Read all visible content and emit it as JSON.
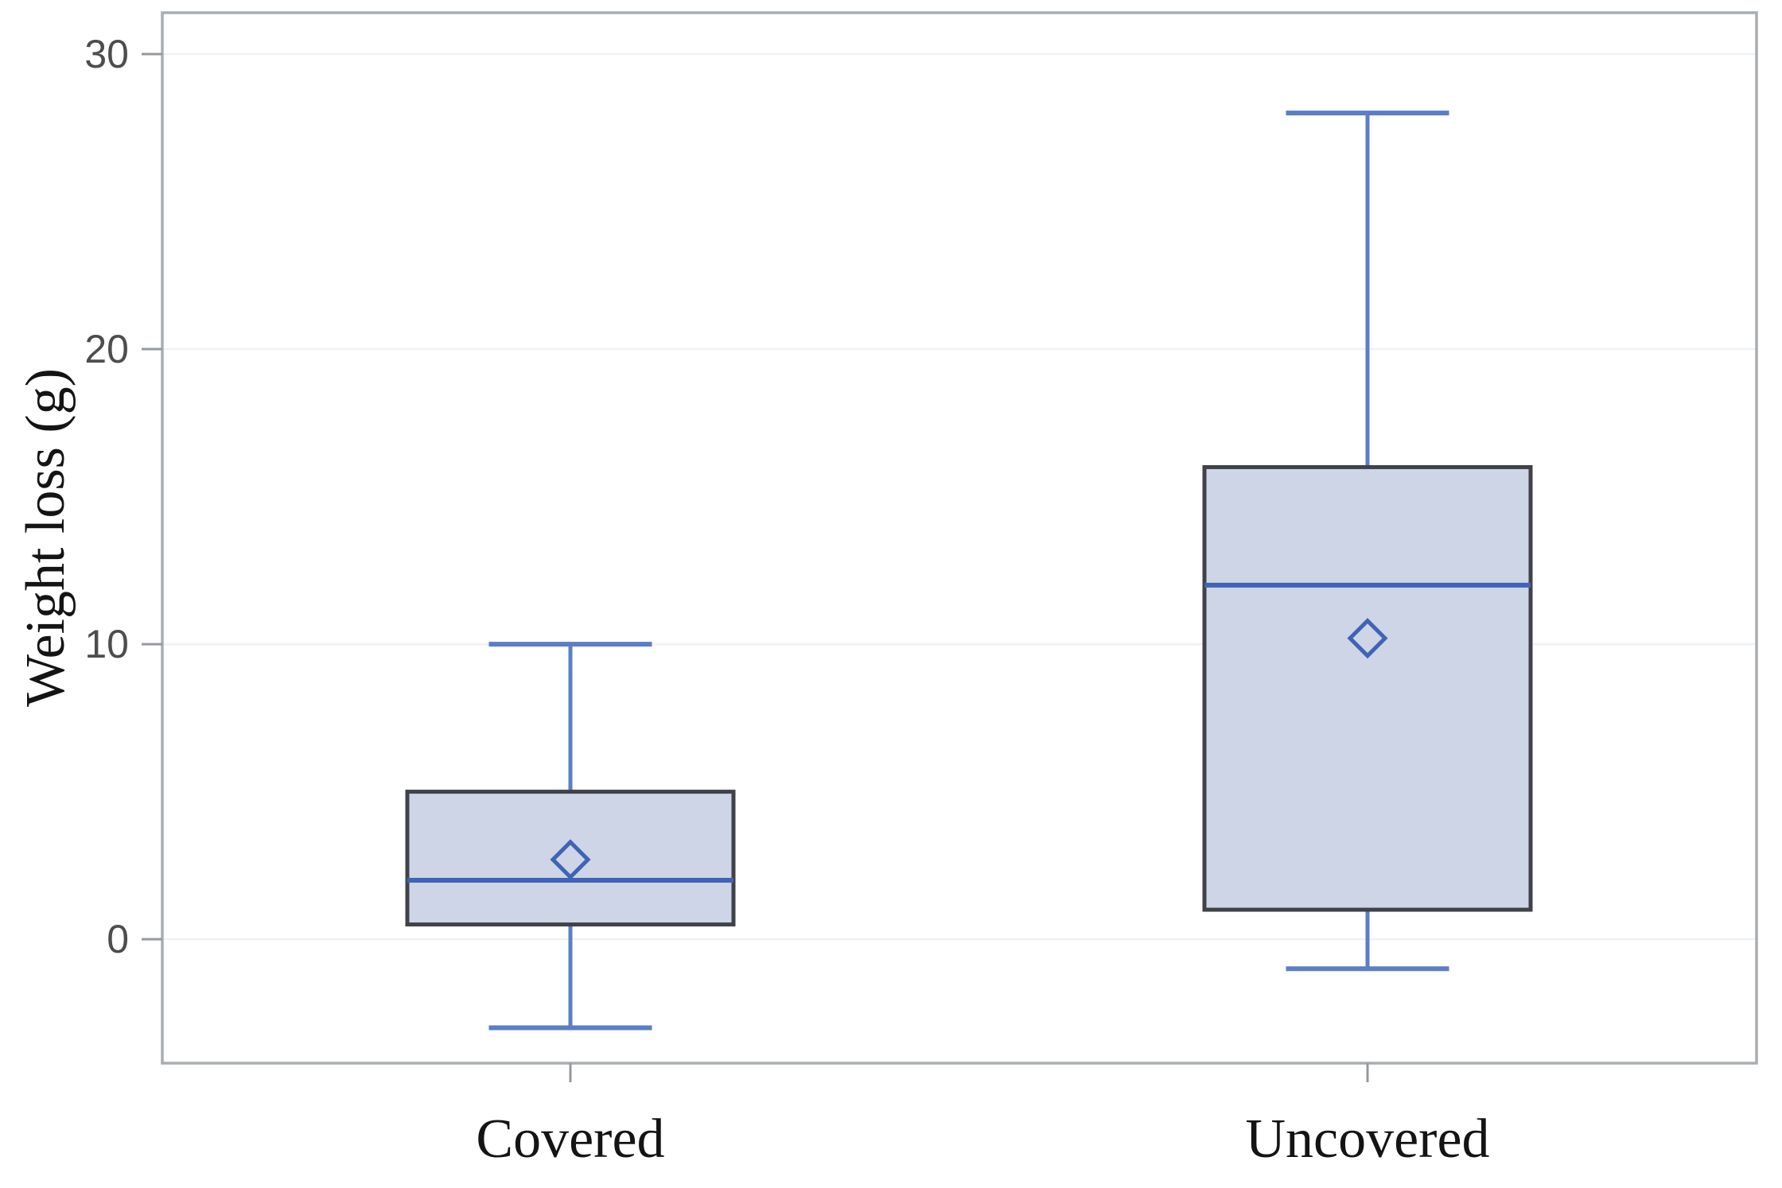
{
  "figure": {
    "background": "#ffffff"
  },
  "chart_data": {
    "type": "boxplot",
    "title": "",
    "xlabel": "",
    "ylabel": "Weight loss (g)",
    "categories": [
      "Covered",
      "Uncovered"
    ],
    "yticks": [
      0,
      10,
      20,
      30
    ],
    "ylim": [
      -4.2,
      31.4
    ],
    "grid": true,
    "legend": "none",
    "mean_marker_shape": "open-diamond",
    "series": [
      {
        "name": "Covered",
        "whisker_low": -3,
        "q1": 0.5,
        "median": 2,
        "mean": 2.7,
        "q3": 5,
        "whisker_high": 10
      },
      {
        "name": "Uncovered",
        "whisker_low": -1,
        "q1": 1,
        "median": 12,
        "mean": 10.2,
        "q3": 16,
        "whisker_high": 28
      }
    ],
    "colors": {
      "box_fill": "#cdd5e6",
      "box_border": "#3f4347",
      "median": "#3f63b5",
      "whisker": "#5b7ec6",
      "mean_marker": "#3f63b5",
      "grid": "#f0f1f3",
      "frame": "#a9adb1",
      "tick": "#95999d",
      "tick_label": "#4d4d4d",
      "category_label": "#141414",
      "axis_title": "#141414"
    }
  }
}
